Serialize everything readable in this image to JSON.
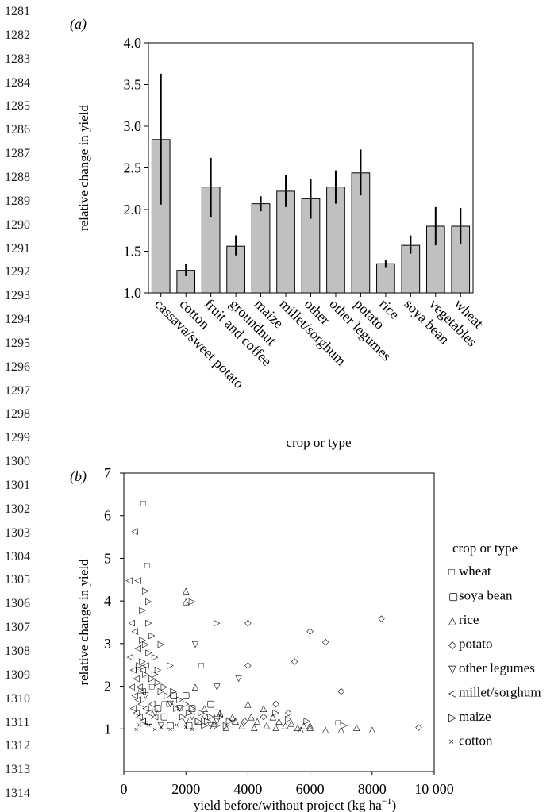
{
  "line_numbers": [
    "1281",
    "1282",
    "1283",
    "1284",
    "1285",
    "1286",
    "1287",
    "1288",
    "1289",
    "1290",
    "1291",
    "1292",
    "1293",
    "1294",
    "1295",
    "1296",
    "1297",
    "1298",
    "1299",
    "1300",
    "1301",
    "1302",
    "1303",
    "1304",
    "1305",
    "1306",
    "1307",
    "1308",
    "1309",
    "1310",
    "1311",
    "1312",
    "1313",
    "1314"
  ],
  "panel_a_label": "(a)",
  "panel_b_label": "(b)",
  "chart_data": [
    {
      "type": "bar",
      "panel": "(a)",
      "xlabel": "crop or type",
      "ylabel": "relative change in yield",
      "ylim": [
        1.0,
        4.0
      ],
      "yticks": [
        "1.0",
        "1.5",
        "2.0",
        "2.5",
        "3.0",
        "3.5",
        "4.0"
      ],
      "grid": false,
      "bar_color": "#c0c0c0",
      "categories": [
        "cassava/sweet potato",
        "cotton",
        "fruit and coffee",
        "groundnut",
        "maize",
        "millet/sorghum",
        "other",
        "other legumes",
        "potato",
        "rice",
        "soya bean",
        "vegetables",
        "wheat"
      ],
      "values": [
        2.84,
        1.27,
        2.27,
        1.56,
        2.07,
        2.22,
        2.13,
        2.27,
        2.44,
        1.35,
        1.57,
        1.8,
        1.8
      ],
      "error_low": [
        2.06,
        1.2,
        1.91,
        1.45,
        1.98,
        2.03,
        1.89,
        2.07,
        2.17,
        1.3,
        1.47,
        1.57,
        1.58
      ],
      "error_high": [
        3.63,
        1.35,
        2.62,
        1.69,
        2.16,
        2.41,
        2.37,
        2.47,
        2.72,
        1.4,
        1.69,
        2.03,
        2.02
      ]
    },
    {
      "type": "scatter",
      "panel": "(b)",
      "xlabel": "yield before/without project (kg ha",
      "xlabel_sup": "−1",
      "xlabel_close": ")",
      "ylabel": "relative change in yield",
      "xlim": [
        0,
        10000
      ],
      "ylim": [
        0,
        7
      ],
      "xticks": [
        "0",
        "2000",
        "4000",
        "6000",
        "8000",
        "10 000"
      ],
      "yticks": [
        "1",
        "2",
        "3",
        "4",
        "5",
        "6",
        "7"
      ],
      "grid": false,
      "legend_title": "crop or type",
      "legend_position": "right",
      "series": [
        {
          "name": "wheat",
          "marker": "□",
          "color": "#8a8a8a",
          "points": [
            [
              630,
              6.3
            ],
            [
              750,
              4.85
            ],
            [
              470,
              2.4
            ],
            [
              560,
              1.9
            ],
            [
              2500,
              2.5
            ],
            [
              1300,
              1.6
            ],
            [
              3000,
              1.3
            ],
            [
              6900,
              1.15
            ],
            [
              900,
              2.0
            ],
            [
              1800,
              1.5
            ]
          ]
        },
        {
          "name": "soya bean",
          "marker": "▢",
          "color": "#000000",
          "points": [
            [
              800,
              1.2
            ],
            [
              1100,
              1.5
            ],
            [
              1300,
              1.3
            ],
            [
              1600,
              1.8
            ],
            [
              2000,
              1.8
            ],
            [
              2200,
              1.5
            ],
            [
              2400,
              1.2
            ],
            [
              2800,
              1.6
            ],
            [
              3000,
              1.4
            ],
            [
              2100,
              1.1
            ],
            [
              1500,
              1.1
            ]
          ]
        },
        {
          "name": "rice",
          "marker": "△",
          "color": "#000000",
          "points": [
            [
              2000,
              4.25
            ],
            [
              2000,
              4.0
            ],
            [
              2300,
              2.0
            ],
            [
              2600,
              1.5
            ],
            [
              3100,
              1.4
            ],
            [
              3500,
              1.3
            ],
            [
              3800,
              1.1
            ],
            [
              4000,
              1.6
            ],
            [
              4100,
              1.3
            ],
            [
              4300,
              1.2
            ],
            [
              4500,
              1.5
            ],
            [
              4600,
              1.1
            ],
            [
              4800,
              1.3
            ],
            [
              5000,
              1.2
            ],
            [
              5200,
              1.1
            ],
            [
              5400,
              1.15
            ],
            [
              5600,
              1.05
            ],
            [
              5800,
              1.1
            ],
            [
              6000,
              1.05
            ],
            [
              6000,
              1.1
            ],
            [
              6500,
              1.0
            ],
            [
              7000,
              1.0
            ],
            [
              7500,
              1.05
            ],
            [
              8000,
              1.0
            ],
            [
              3300,
              1.05
            ],
            [
              4200,
              1.05
            ],
            [
              2900,
              1.15
            ],
            [
              3600,
              1.2
            ],
            [
              4900,
              1.05
            ],
            [
              5700,
              1.0
            ]
          ]
        },
        {
          "name": "potato",
          "marker": "◇",
          "color": "#000000",
          "points": [
            [
              4000,
              3.5
            ],
            [
              6000,
              3.3
            ],
            [
              6500,
              3.05
            ],
            [
              5500,
              2.6
            ],
            [
              8300,
              3.6
            ],
            [
              7000,
              1.9
            ],
            [
              9500,
              1.05
            ],
            [
              4000,
              2.5
            ],
            [
              4900,
              1.6
            ],
            [
              5300,
              1.4
            ],
            [
              4500,
              1.3
            ],
            [
              3900,
              1.2
            ]
          ]
        },
        {
          "name": "other legumes",
          "marker": "▽",
          "color": "#000000",
          "points": [
            [
              2300,
              3.0
            ],
            [
              3000,
              2.0
            ],
            [
              3700,
              2.2
            ],
            [
              1500,
              1.6
            ],
            [
              1800,
              1.5
            ],
            [
              2200,
              1.3
            ],
            [
              2600,
              1.3
            ],
            [
              3000,
              1.2
            ],
            [
              1200,
              1.1
            ],
            [
              2000,
              1.2
            ],
            [
              2800,
              1.1
            ],
            [
              3500,
              1.2
            ],
            [
              1000,
              1.4
            ],
            [
              700,
              1.8
            ]
          ]
        },
        {
          "name": "millet/sorghum",
          "marker": "◁",
          "color": "#000000",
          "points": [
            [
              350,
              5.65
            ],
            [
              170,
              4.5
            ],
            [
              450,
              4.5
            ],
            [
              250,
              3.5
            ],
            [
              350,
              3.3
            ],
            [
              450,
              2.9
            ],
            [
              200,
              2.7
            ],
            [
              300,
              2.4
            ],
            [
              400,
              2.2
            ],
            [
              500,
              2.0
            ],
            [
              600,
              1.9
            ],
            [
              250,
              2.0
            ],
            [
              350,
              1.8
            ],
            [
              450,
              1.7
            ],
            [
              550,
              1.6
            ],
            [
              300,
              1.5
            ],
            [
              400,
              1.4
            ],
            [
              500,
              1.3
            ],
            [
              600,
              1.2
            ],
            [
              700,
              1.5
            ],
            [
              800,
              1.4
            ],
            [
              900,
              1.6
            ],
            [
              1000,
              1.3
            ],
            [
              700,
              2.5
            ],
            [
              600,
              2.4
            ]
          ]
        },
        {
          "name": "maize",
          "marker": "▷",
          "color": "#000000",
          "points": [
            [
              2200,
              4.0
            ],
            [
              3000,
              3.5
            ],
            [
              800,
              3.5
            ],
            [
              600,
              3.8
            ],
            [
              900,
              3.2
            ],
            [
              1200,
              3.0
            ],
            [
              700,
              3.0
            ],
            [
              800,
              2.8
            ],
            [
              1000,
              2.7
            ],
            [
              1500,
              2.5
            ],
            [
              500,
              2.5
            ],
            [
              700,
              2.3
            ],
            [
              900,
              2.2
            ],
            [
              1100,
              2.1
            ],
            [
              1300,
              2.0
            ],
            [
              1600,
              1.9
            ],
            [
              1800,
              1.7
            ],
            [
              2000,
              1.6
            ],
            [
              2200,
              1.5
            ],
            [
              2500,
              1.4
            ],
            [
              2800,
              1.3
            ],
            [
              3100,
              1.3
            ],
            [
              3400,
              1.2
            ],
            [
              1400,
              1.8
            ],
            [
              1700,
              1.5
            ],
            [
              2100,
              1.4
            ],
            [
              2400,
              1.2
            ],
            [
              2700,
              1.2
            ],
            [
              3000,
              1.1
            ],
            [
              3300,
              1.1
            ],
            [
              700,
              4.25
            ],
            [
              800,
              4.0
            ],
            [
              600,
              2.6
            ],
            [
              1000,
              2.3
            ],
            [
              1200,
              1.9
            ],
            [
              1500,
              1.6
            ],
            [
              1900,
              1.3
            ],
            [
              2600,
              1.1
            ],
            [
              4900,
              1.4
            ],
            [
              5300,
              1.25
            ],
            [
              5900,
              1.2
            ],
            [
              7100,
              1.1
            ],
            [
              600,
              3.1
            ],
            [
              1100,
              2.4
            ]
          ]
        },
        {
          "name": "cotton",
          "marker": "×",
          "color": "#000000",
          "points": [
            [
              400,
              1.0
            ],
            [
              800,
              1.1
            ],
            [
              1000,
              1.0
            ],
            [
              1200,
              1.05
            ],
            [
              1500,
              1.0
            ],
            [
              1700,
              1.1
            ],
            [
              2000,
              1.05
            ],
            [
              2200,
              1.0
            ],
            [
              500,
              1.1
            ],
            [
              700,
              1.15
            ]
          ]
        }
      ]
    }
  ]
}
